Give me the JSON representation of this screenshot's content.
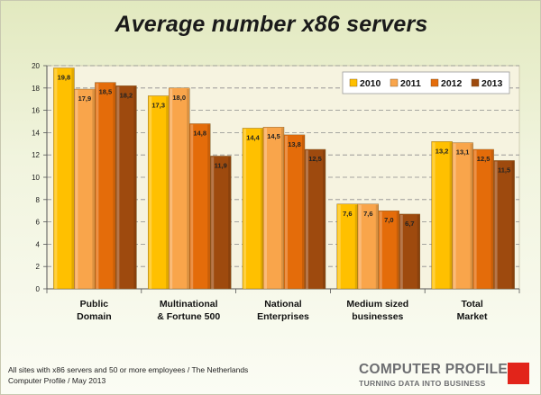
{
  "title": "Average number x86 servers",
  "footer": {
    "line1": "All sites with x86 servers and 50 or more employees / The Netherlands",
    "line2": "Computer Profile / May 2013"
  },
  "logo": {
    "name": "COMPUTER PROFILE",
    "tagline": "TURNING DATA INTO BUSINESS",
    "accent": "#e2241a"
  },
  "chart_data": {
    "type": "bar",
    "title": "Average number x86 servers",
    "xlabel": "",
    "ylabel": "",
    "ylim": [
      0,
      20
    ],
    "yticks": [
      0,
      2,
      4,
      6,
      8,
      10,
      12,
      14,
      16,
      18,
      20
    ],
    "grid": true,
    "legend_position": "top-right",
    "categories": [
      [
        "Public",
        "Domain"
      ],
      [
        "Multinational",
        "& Fortune 500"
      ],
      [
        "National",
        "Enterprises"
      ],
      [
        "Medium sized",
        "businesses"
      ],
      [
        "Total",
        "Market"
      ]
    ],
    "series": [
      {
        "name": "2010",
        "color": "#ffc000",
        "values": [
          19.8,
          17.3,
          14.4,
          7.6,
          13.2
        ],
        "labels": [
          "19,8",
          "17,3",
          "14,4",
          "7,6",
          "13,2"
        ]
      },
      {
        "name": "2011",
        "color": "#f9a54b",
        "values": [
          17.9,
          18.0,
          14.5,
          7.6,
          13.1
        ],
        "labels": [
          "17,9",
          "18,0",
          "14,5",
          "7,6",
          "13,1"
        ]
      },
      {
        "name": "2012",
        "color": "#e46c0a",
        "values": [
          18.5,
          14.8,
          13.8,
          7.0,
          12.5
        ],
        "labels": [
          "18,5",
          "14,8",
          "13,8",
          "7,0",
          "12,5"
        ]
      },
      {
        "name": "2013",
        "color": "#9e4a0e",
        "values": [
          18.2,
          11.9,
          12.5,
          6.7,
          11.5
        ],
        "labels": [
          "18,2",
          "11,9",
          "12,5",
          "6,7",
          "11,5"
        ]
      }
    ]
  }
}
